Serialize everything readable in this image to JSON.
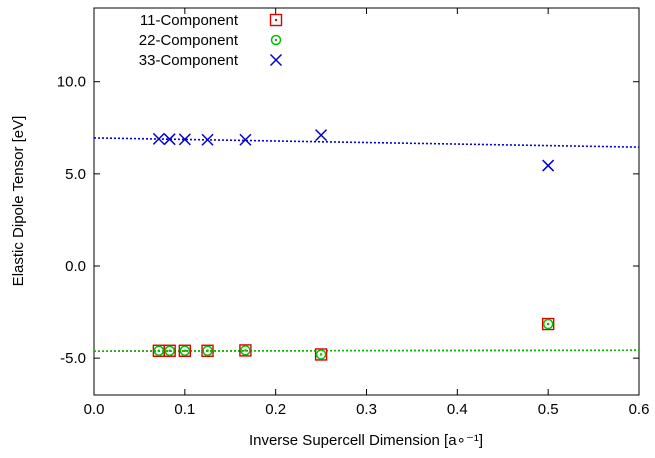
{
  "chart_data": {
    "type": "scatter",
    "xlabel": "Inverse Supercell Dimension [a∘⁻¹]",
    "ylabel": "Elastic Dipole Tensor [eV]",
    "xlim": [
      0.0,
      0.6
    ],
    "ylim": [
      -7.0,
      14.0
    ],
    "xticks": [
      0.0,
      0.1,
      0.2,
      0.3,
      0.4,
      0.5,
      0.6
    ],
    "xtick_labels": [
      "0.0",
      "0.1",
      "0.2",
      "0.3",
      "0.4",
      "0.5",
      "0.6"
    ],
    "yticks": [
      -5.0,
      0.0,
      5.0,
      10.0
    ],
    "ytick_labels": [
      "-5.0",
      "0.0",
      "5.0",
      "10.0"
    ],
    "grid": false,
    "legend_position": "top-left",
    "series": [
      {
        "name": "11-Component",
        "color": "#e00000",
        "marker": "square-dot",
        "x": [
          0.0714,
          0.0833,
          0.1,
          0.125,
          0.1667,
          0.25,
          0.5
        ],
        "y": [
          -4.6,
          -4.6,
          -4.6,
          -4.6,
          -4.58,
          -4.8,
          -3.15
        ],
        "fit": {
          "x": [
            0.0,
            0.6
          ],
          "y": [
            -4.62,
            -4.57
          ]
        }
      },
      {
        "name": "22-Component",
        "color": "#00c000",
        "marker": "circle-dot",
        "x": [
          0.0714,
          0.0833,
          0.1,
          0.125,
          0.1667,
          0.25,
          0.5
        ],
        "y": [
          -4.6,
          -4.6,
          -4.6,
          -4.6,
          -4.58,
          -4.8,
          -3.15
        ],
        "fit": {
          "x": [
            0.0,
            0.6
          ],
          "y": [
            -4.62,
            -4.57
          ]
        }
      },
      {
        "name": "33-Component",
        "color": "#0000d0",
        "marker": "x",
        "x": [
          0.0714,
          0.0833,
          0.1,
          0.125,
          0.1667,
          0.25,
          0.5
        ],
        "y": [
          6.9,
          6.88,
          6.87,
          6.85,
          6.85,
          7.1,
          5.45
        ],
        "fit": {
          "x": [
            0.0,
            0.6
          ],
          "y": [
            6.95,
            6.45
          ]
        }
      }
    ]
  }
}
